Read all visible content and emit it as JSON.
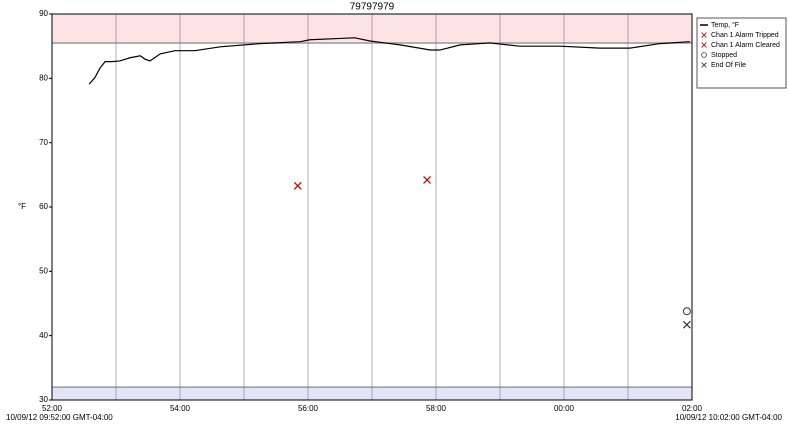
{
  "chart_data": {
    "type": "line",
    "title": "79797979",
    "y_label": "°F",
    "start_label": "10/09/12 09:52:00 GMT-04:00",
    "end_label": "10/09/12 10:02:00 GMT-04:00",
    "xlim": [
      0,
      10
    ],
    "xticks": [
      {
        "value": 0,
        "label": "52:00"
      },
      {
        "value": 2,
        "label": "54:00"
      },
      {
        "value": 4,
        "label": "56:00"
      },
      {
        "value": 6,
        "label": "58:00"
      },
      {
        "value": 8,
        "label": "00:00"
      },
      {
        "value": 10,
        "label": "02:00"
      }
    ],
    "x_minor_grid": [
      1,
      3,
      5,
      7,
      9
    ],
    "ylim": [
      30,
      90
    ],
    "yticks": [
      30,
      40,
      50,
      60,
      70,
      80,
      90
    ],
    "grid": true,
    "alarm_bands": [
      {
        "from": 85.5,
        "to": 90,
        "color": "#fde3e3"
      },
      {
        "from": 30,
        "to": 32,
        "color": "#e4e4f8"
      }
    ],
    "legend": "outside-right",
    "series": [
      {
        "name": "Temp, °F",
        "color": "#000000",
        "mode": "line",
        "x": [
          0.58,
          0.67,
          0.75,
          0.83,
          0.94,
          1.06,
          1.22,
          1.38,
          1.45,
          1.53,
          1.69,
          1.92,
          2.23,
          2.63,
          3.25,
          3.88,
          4.03,
          4.5,
          4.73,
          4.97,
          5.44,
          5.91,
          6.06,
          6.38,
          6.84,
          7.31,
          7.94,
          8.56,
          9.03,
          9.5,
          9.97
        ],
        "values": [
          79.1,
          80.1,
          81.6,
          82.6,
          82.6,
          82.7,
          83.2,
          83.5,
          83.0,
          82.7,
          83.8,
          84.3,
          84.3,
          84.9,
          85.4,
          85.7,
          86.0,
          86.2,
          86.3,
          85.8,
          85.2,
          84.4,
          84.4,
          85.2,
          85.5,
          85.0,
          85.0,
          84.7,
          84.7,
          85.4,
          85.7
        ]
      },
      {
        "name": "Chan 1 Alarm Tripped",
        "color": "#c00000",
        "mode": "marker",
        "marker": "x",
        "x": [
          3.84
        ],
        "values": [
          63.3
        ]
      },
      {
        "name": "Chan 1 Alarm Cleared",
        "color": "#c00000",
        "mode": "marker",
        "marker": "x",
        "x": [
          5.86
        ],
        "values": [
          64.2
        ]
      },
      {
        "name": "Stopped",
        "color": "#333333",
        "mode": "marker",
        "marker": "o",
        "x": [
          9.92
        ],
        "values": [
          43.8
        ]
      },
      {
        "name": "End Of File",
        "color": "#333333",
        "mode": "marker",
        "marker": "x",
        "x": [
          9.92
        ],
        "values": [
          41.7
        ]
      }
    ]
  }
}
